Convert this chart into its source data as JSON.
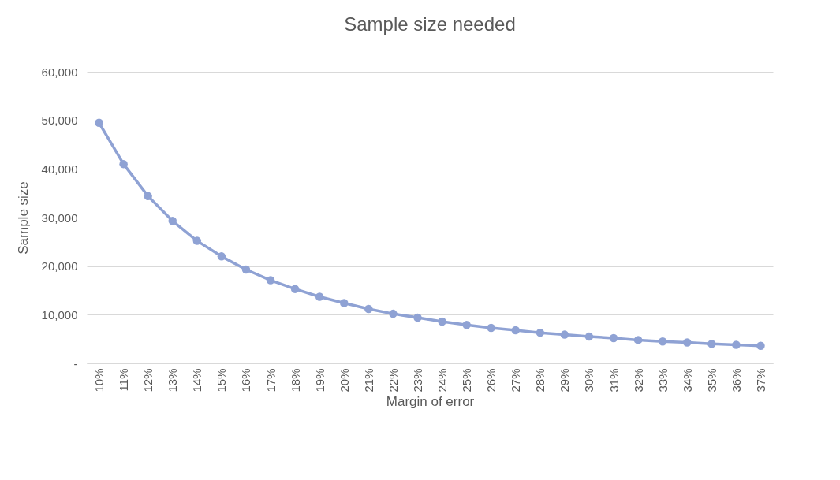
{
  "chart_data": {
    "type": "line",
    "title": "Sample size needed",
    "xlabel": "Margin of error",
    "ylabel": "Sample size",
    "categories": [
      "10%",
      "11%",
      "12%",
      "13%",
      "14%",
      "15%",
      "16%",
      "17%",
      "18%",
      "19%",
      "20%",
      "21%",
      "22%",
      "23%",
      "24%",
      "25%",
      "26%",
      "27%",
      "28%",
      "29%",
      "30%",
      "31%",
      "32%",
      "33%",
      "34%",
      "35%",
      "36%",
      "37%"
    ],
    "series": [
      {
        "color": "#8fa2d4",
        "values": [
          49500,
          41000,
          34400,
          29300,
          25200,
          22000,
          19300,
          17100,
          15300,
          13700,
          12400,
          11200,
          10200,
          9400,
          8600,
          7900,
          7300,
          6800,
          6300,
          5900,
          5500,
          5200,
          4800,
          4500,
          4300,
          4000,
          3800,
          3600
        ]
      }
    ],
    "ylim": [
      0,
      60000
    ],
    "yticks": [
      {
        "value": 0,
        "label": "-"
      },
      {
        "value": 10000,
        "label": "10,000"
      },
      {
        "value": 20000,
        "label": "20,000"
      },
      {
        "value": 30000,
        "label": "30,000"
      },
      {
        "value": 40000,
        "label": "40,000"
      },
      {
        "value": 50000,
        "label": "50,000"
      },
      {
        "value": 60000,
        "label": "60,000"
      }
    ],
    "grid": "y",
    "marker": "circle",
    "line_style": "solid"
  }
}
